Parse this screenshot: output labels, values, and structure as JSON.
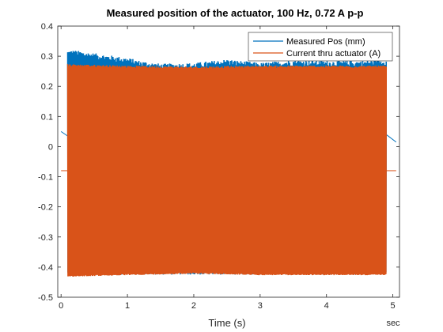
{
  "chart_data": {
    "type": "line",
    "title": "Measured position of the actuator, 100 Hz, 0.72 A p-p",
    "xlabel": "Time (s)",
    "x_unit_label": "sec",
    "ylabel": "",
    "xlim": [
      -0.05,
      5.1
    ],
    "ylim": [
      -0.5,
      0.4
    ],
    "xticks": [
      0,
      1,
      2,
      3,
      4,
      5
    ],
    "yticks": [
      -0.5,
      -0.4,
      -0.3,
      -0.2,
      -0.1,
      0,
      0.1,
      0.2,
      0.3,
      0.4
    ],
    "xtick_labels": [
      "0",
      "1",
      "2",
      "3",
      "4",
      "5"
    ],
    "ytick_labels": [
      "-0.5",
      "-0.4",
      "-0.3",
      "-0.2",
      "-0.1",
      "0",
      "0.1",
      "0.2",
      "0.3",
      "0.4"
    ],
    "grid": false,
    "legend_position": "top-right",
    "signal_frequency_hz": 100,
    "series": [
      {
        "name": "Measured Pos (mm)",
        "color": "#0072BD",
        "pre_segment": {
          "x": [
            0.0,
            0.1
          ],
          "y": [
            0.05,
            0.035
          ]
        },
        "active_interval": [
          0.1,
          4.9
        ],
        "envelope_upper": {
          "x": [
            0.1,
            0.2,
            0.5,
            1.0,
            1.2,
            1.5,
            2.0,
            2.5,
            3.0,
            3.5,
            4.0,
            4.5,
            4.9
          ],
          "y": [
            0.31,
            0.31,
            0.3,
            0.285,
            0.275,
            0.265,
            0.268,
            0.28,
            0.268,
            0.278,
            0.275,
            0.275,
            0.28
          ]
        },
        "envelope_lower": {
          "x": [
            0.1,
            4.9
          ],
          "y": [
            -0.42,
            -0.42
          ]
        },
        "post_segment": {
          "x": [
            4.9,
            5.05
          ],
          "y": [
            0.04,
            0.015
          ]
        }
      },
      {
        "name": "Current thru actuator (A)",
        "color": "#D95319",
        "pre_segment": {
          "x": [
            0.0,
            0.1
          ],
          "y": [
            -0.08,
            -0.08
          ]
        },
        "active_interval": [
          0.1,
          4.9
        ],
        "envelope_upper": {
          "x": [
            0.1,
            1.0,
            2.0,
            3.0,
            4.0,
            4.9
          ],
          "y": [
            0.27,
            0.265,
            0.262,
            0.265,
            0.265,
            0.265
          ]
        },
        "envelope_lower": {
          "x": [
            0.1,
            1.0,
            2.0,
            3.0,
            4.0,
            4.9
          ],
          "y": [
            -0.43,
            -0.425,
            -0.42,
            -0.425,
            -0.425,
            -0.425
          ]
        },
        "post_segment": {
          "x": [
            4.9,
            5.05
          ],
          "y": [
            -0.08,
            -0.08
          ]
        }
      }
    ]
  }
}
